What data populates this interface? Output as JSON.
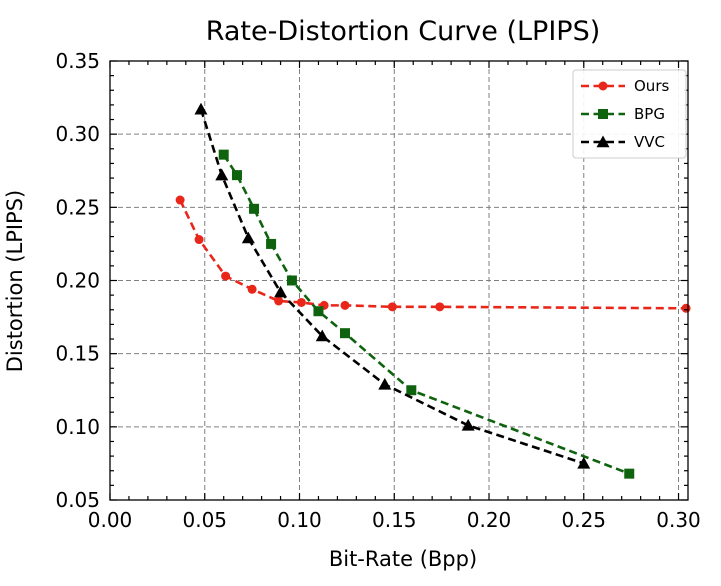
{
  "chart_data": {
    "type": "line",
    "title": "Rate-Distortion Curve (LPIPS)",
    "xlabel": "Bit-Rate (Bpp)",
    "ylabel": "Distortion (LPIPS)",
    "xlim": [
      0.0,
      0.305
    ],
    "ylim": [
      0.05,
      0.35
    ],
    "xticks": [
      "0.00",
      "0.05",
      "0.10",
      "0.15",
      "0.20",
      "0.25",
      "0.30"
    ],
    "yticks": [
      "0.05",
      "0.10",
      "0.15",
      "0.20",
      "0.25",
      "0.30",
      "0.35"
    ],
    "grid": true,
    "legend_position": "top-right",
    "series": [
      {
        "name": "Ours",
        "color": "#e8271a",
        "marker": "circle",
        "x": [
          0.037,
          0.047,
          0.061,
          0.075,
          0.089,
          0.101,
          0.113,
          0.124,
          0.149,
          0.174,
          0.304
        ],
        "y": [
          0.255,
          0.228,
          0.203,
          0.194,
          0.186,
          0.185,
          0.183,
          0.183,
          0.182,
          0.182,
          0.181
        ]
      },
      {
        "name": "BPG",
        "color": "#0f630f",
        "marker": "square",
        "x": [
          0.06,
          0.067,
          0.076,
          0.085,
          0.096,
          0.11,
          0.124,
          0.159,
          0.274
        ],
        "y": [
          0.286,
          0.272,
          0.249,
          0.225,
          0.2,
          0.179,
          0.164,
          0.125,
          0.068
        ]
      },
      {
        "name": "VVC",
        "color": "#000000",
        "marker": "triangle",
        "x": [
          0.048,
          0.059,
          0.073,
          0.09,
          0.112,
          0.145,
          0.189,
          0.25
        ],
        "y": [
          0.317,
          0.272,
          0.229,
          0.192,
          0.162,
          0.129,
          0.101,
          0.075
        ]
      }
    ]
  }
}
